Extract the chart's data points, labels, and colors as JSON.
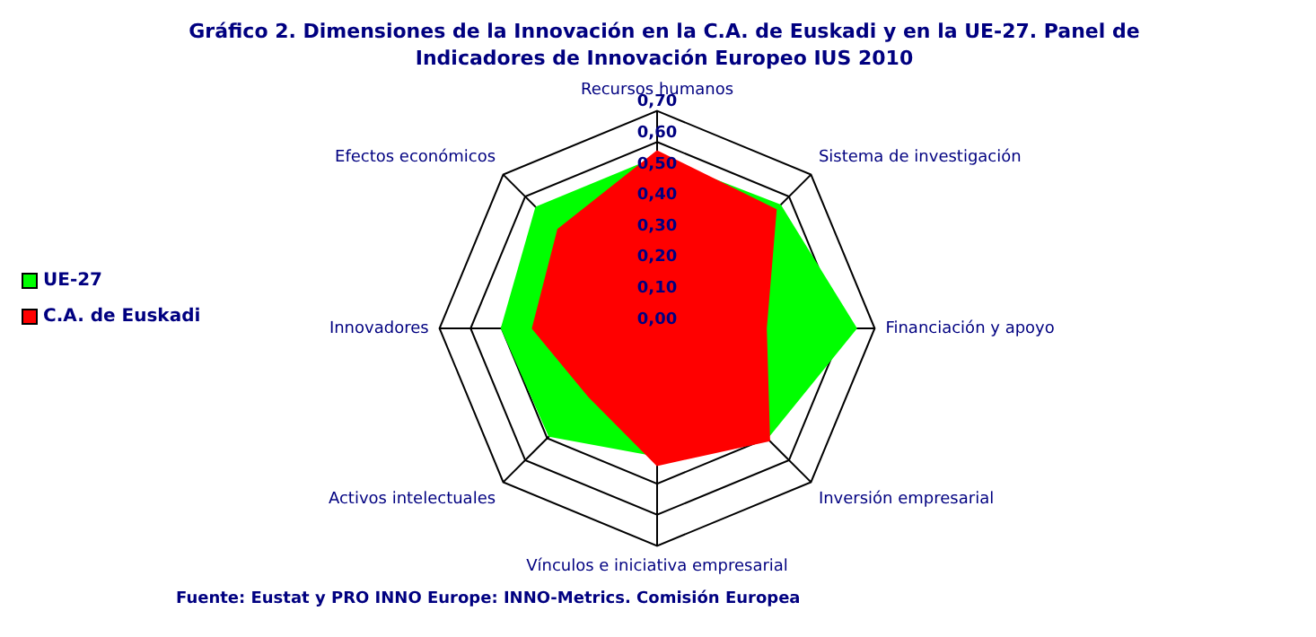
{
  "chart_data": {
    "type": "radar",
    "title": "Gráfico 2. Dimensiones de la Innovación en la C.A. de Euskadi y en la UE-27. Panel de Indicadores de Innovación Europeo IUS 2010",
    "categories": [
      "Recursos humanos",
      "Sistema de investigación",
      "Financiación y apoyo",
      "Inversión empresarial",
      "Vínculos e iniciativa empresarial",
      "Activos intelectuales",
      "Innovadores",
      "Efectos económicos"
    ],
    "series": [
      {
        "name": "UE-27",
        "color": "#00ff00",
        "values": [
          0.55,
          0.56,
          0.64,
          0.5,
          0.41,
          0.49,
          0.5,
          0.55
        ]
      },
      {
        "name": "C.A. de Euskadi",
        "color": "#ff0000",
        "values": [
          0.57,
          0.54,
          0.35,
          0.51,
          0.44,
          0.31,
          0.4,
          0.45
        ]
      }
    ],
    "ylim": [
      0,
      0.7
    ],
    "yticks": [
      {
        "value": 0,
        "label": "0,00"
      },
      {
        "value": 0.1,
        "label": "0,10"
      },
      {
        "value": 0.2,
        "label": "0,20"
      },
      {
        "value": 0.3,
        "label": "0,30"
      },
      {
        "value": 0.4,
        "label": "0,40"
      },
      {
        "value": 0.5,
        "label": "0,50"
      },
      {
        "value": 0.6,
        "label": "0,60"
      },
      {
        "value": 0.7,
        "label": "0,70"
      }
    ],
    "legend": "left",
    "annotations": [
      "Fuente: Eustat y PRO INNO Europe: INNO-Metrics. Comisión Europea"
    ]
  }
}
